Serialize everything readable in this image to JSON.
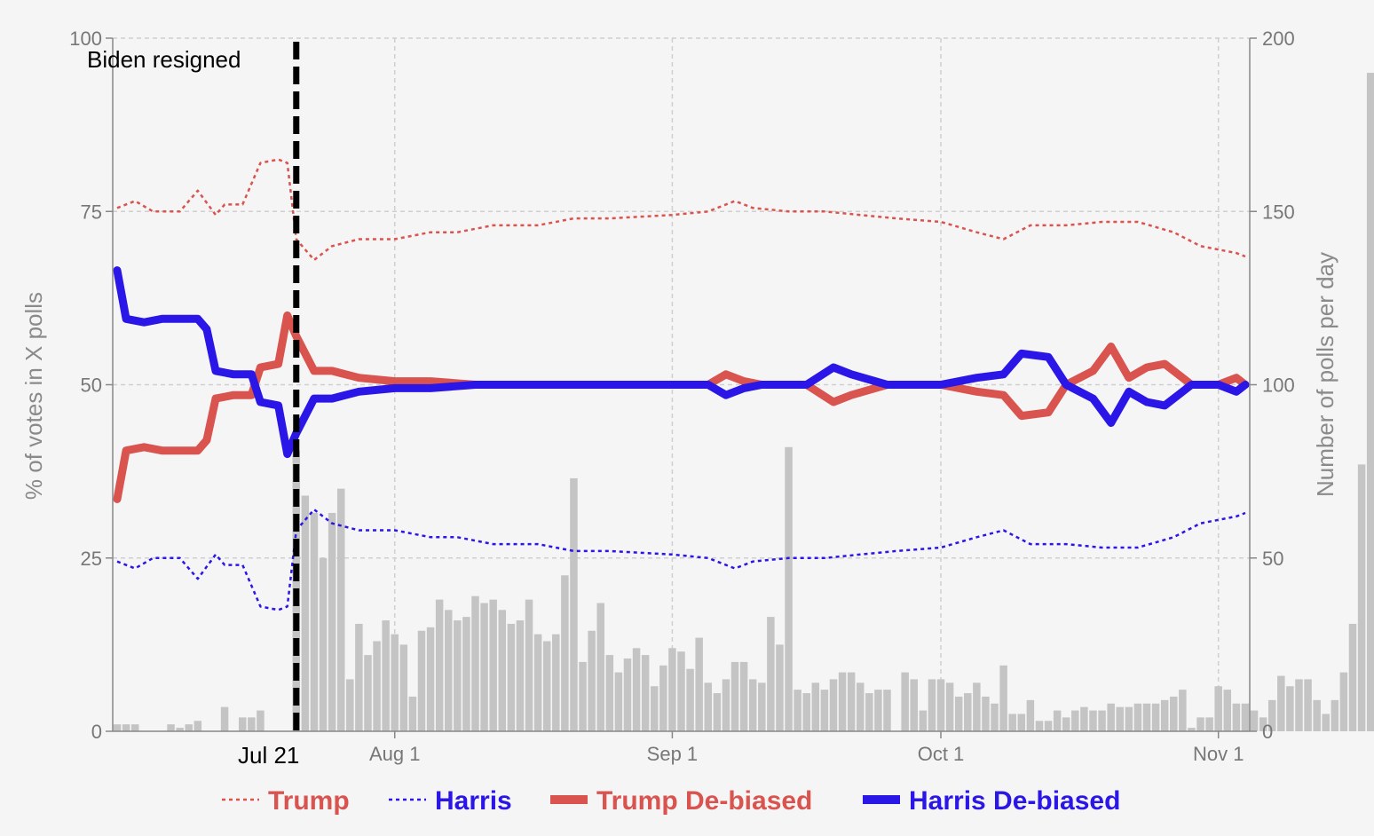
{
  "chart_data": {
    "type": "line",
    "title": "",
    "ylabel": "% of votes in X polls",
    "y2label": "Number of polls per day",
    "ylim": [
      0,
      100
    ],
    "y2lim": [
      0,
      200
    ],
    "yticks": [
      0,
      25,
      50,
      75,
      100
    ],
    "y2ticks": [
      0,
      50,
      100,
      150,
      200
    ],
    "xrange": [
      "2024-07-01",
      "2024-11-04"
    ],
    "xticks": [
      {
        "date": "2024-08-01",
        "label": "Aug 1"
      },
      {
        "date": "2024-09-01",
        "label": "Sep 1"
      },
      {
        "date": "2024-10-01",
        "label": "Oct 1"
      },
      {
        "date": "2024-11-01",
        "label": "Nov 1"
      }
    ],
    "grid": true,
    "legend_position": "bottom",
    "annotation": {
      "date": "2024-07-21",
      "label": "Biden resigned",
      "date_label": "Jul 21"
    },
    "bars": {
      "name": "Number of polls per day",
      "color": "#c4c4c4",
      "values": [
        2,
        2,
        2,
        0,
        0,
        0,
        2,
        1,
        2,
        3,
        0,
        0,
        7,
        0,
        4,
        4,
        6,
        0,
        0,
        0,
        81,
        68,
        63,
        50,
        63,
        70,
        15,
        31,
        22,
        26,
        32,
        28,
        25,
        10,
        29,
        30,
        38,
        35,
        32,
        33,
        39,
        37,
        38,
        35,
        31,
        32,
        38,
        28,
        26,
        28,
        45,
        73,
        20,
        29,
        37,
        22,
        17,
        21,
        24,
        22,
        13,
        19,
        24,
        23,
        18,
        27,
        14,
        11,
        15,
        20,
        20,
        15,
        14,
        33,
        25,
        82,
        12,
        11,
        14,
        12,
        15,
        17,
        17,
        14,
        11,
        12,
        12,
        0,
        17,
        15,
        6,
        15,
        15,
        14,
        10,
        11,
        14,
        10,
        8,
        19,
        5,
        5,
        9,
        3,
        3,
        6,
        4,
        6,
        7,
        6,
        6,
        8,
        7,
        7,
        8,
        8,
        8,
        9,
        10,
        12,
        1,
        4,
        4,
        13,
        12,
        8,
        8,
        6,
        4,
        9,
        16,
        13,
        15,
        15,
        9,
        5,
        9,
        17,
        31,
        77,
        190
      ]
    },
    "series": [
      {
        "name": "Trump",
        "style": "dotted",
        "color": "#d9534f",
        "points": [
          [
            "2024-07-01",
            75.5
          ],
          [
            "2024-07-03",
            76.5
          ],
          [
            "2024-07-05",
            75
          ],
          [
            "2024-07-08",
            75
          ],
          [
            "2024-07-10",
            78
          ],
          [
            "2024-07-12",
            74.5
          ],
          [
            "2024-07-13",
            76
          ],
          [
            "2024-07-15",
            76
          ],
          [
            "2024-07-17",
            82
          ],
          [
            "2024-07-19",
            82.5
          ],
          [
            "2024-07-20",
            82
          ],
          [
            "2024-07-21",
            71
          ],
          [
            "2024-07-23",
            68
          ],
          [
            "2024-07-25",
            70
          ],
          [
            "2024-07-28",
            71
          ],
          [
            "2024-08-01",
            71
          ],
          [
            "2024-08-05",
            72
          ],
          [
            "2024-08-08",
            72
          ],
          [
            "2024-08-12",
            73
          ],
          [
            "2024-08-17",
            73
          ],
          [
            "2024-08-21",
            74
          ],
          [
            "2024-08-25",
            74
          ],
          [
            "2024-09-01",
            74.5
          ],
          [
            "2024-09-05",
            75
          ],
          [
            "2024-09-08",
            76.5
          ],
          [
            "2024-09-10",
            75.5
          ],
          [
            "2024-09-14",
            75
          ],
          [
            "2024-09-18",
            75
          ],
          [
            "2024-09-22",
            74.5
          ],
          [
            "2024-09-26",
            74
          ],
          [
            "2024-10-01",
            73.5
          ],
          [
            "2024-10-05",
            72
          ],
          [
            "2024-10-08",
            71
          ],
          [
            "2024-10-11",
            73
          ],
          [
            "2024-10-15",
            73
          ],
          [
            "2024-10-19",
            73.5
          ],
          [
            "2024-10-23",
            73.5
          ],
          [
            "2024-10-27",
            72
          ],
          [
            "2024-10-30",
            70
          ],
          [
            "2024-11-01",
            69.5
          ],
          [
            "2024-11-03",
            69
          ],
          [
            "2024-11-04",
            68.5
          ]
        ]
      },
      {
        "name": "Harris",
        "style": "dotted",
        "color": "#2a16e6",
        "points": [
          [
            "2024-07-01",
            24.5
          ],
          [
            "2024-07-03",
            23.5
          ],
          [
            "2024-07-05",
            25
          ],
          [
            "2024-07-08",
            25
          ],
          [
            "2024-07-10",
            22
          ],
          [
            "2024-07-12",
            25.5
          ],
          [
            "2024-07-13",
            24
          ],
          [
            "2024-07-15",
            24
          ],
          [
            "2024-07-17",
            18
          ],
          [
            "2024-07-19",
            17.5
          ],
          [
            "2024-07-20",
            18
          ],
          [
            "2024-07-21",
            29
          ],
          [
            "2024-07-23",
            32
          ],
          [
            "2024-07-25",
            30
          ],
          [
            "2024-07-28",
            29
          ],
          [
            "2024-08-01",
            29
          ],
          [
            "2024-08-05",
            28
          ],
          [
            "2024-08-08",
            28
          ],
          [
            "2024-08-12",
            27
          ],
          [
            "2024-08-17",
            27
          ],
          [
            "2024-08-21",
            26
          ],
          [
            "2024-08-25",
            26
          ],
          [
            "2024-09-01",
            25.5
          ],
          [
            "2024-09-05",
            25
          ],
          [
            "2024-09-08",
            23.5
          ],
          [
            "2024-09-10",
            24.5
          ],
          [
            "2024-09-14",
            25
          ],
          [
            "2024-09-18",
            25
          ],
          [
            "2024-09-22",
            25.5
          ],
          [
            "2024-09-26",
            26
          ],
          [
            "2024-10-01",
            26.5
          ],
          [
            "2024-10-05",
            28
          ],
          [
            "2024-10-08",
            29
          ],
          [
            "2024-10-11",
            27
          ],
          [
            "2024-10-15",
            27
          ],
          [
            "2024-10-19",
            26.5
          ],
          [
            "2024-10-23",
            26.5
          ],
          [
            "2024-10-27",
            28
          ],
          [
            "2024-10-30",
            30
          ],
          [
            "2024-11-01",
            30.5
          ],
          [
            "2024-11-03",
            31
          ],
          [
            "2024-11-04",
            31.5
          ]
        ]
      },
      {
        "name": "Trump De-biased",
        "style": "solid",
        "color": "#d9534f",
        "points": [
          [
            "2024-07-01",
            33.5
          ],
          [
            "2024-07-02",
            40.5
          ],
          [
            "2024-07-04",
            41
          ],
          [
            "2024-07-06",
            40.5
          ],
          [
            "2024-07-08",
            40.5
          ],
          [
            "2024-07-10",
            40.5
          ],
          [
            "2024-07-11",
            42
          ],
          [
            "2024-07-12",
            48
          ],
          [
            "2024-07-14",
            48.5
          ],
          [
            "2024-07-16",
            48.5
          ],
          [
            "2024-07-17",
            52.5
          ],
          [
            "2024-07-19",
            53
          ],
          [
            "2024-07-20",
            60
          ],
          [
            "2024-07-21",
            57
          ],
          [
            "2024-07-23",
            52
          ],
          [
            "2024-07-25",
            52
          ],
          [
            "2024-07-28",
            51
          ],
          [
            "2024-08-01",
            50.5
          ],
          [
            "2024-08-05",
            50.5
          ],
          [
            "2024-08-10",
            50
          ],
          [
            "2024-08-15",
            50
          ],
          [
            "2024-08-20",
            50
          ],
          [
            "2024-08-25",
            50
          ],
          [
            "2024-09-01",
            50
          ],
          [
            "2024-09-05",
            50
          ],
          [
            "2024-09-07",
            51.5
          ],
          [
            "2024-09-09",
            50.5
          ],
          [
            "2024-09-11",
            50
          ],
          [
            "2024-09-16",
            50
          ],
          [
            "2024-09-19",
            47.5
          ],
          [
            "2024-09-21",
            48.5
          ],
          [
            "2024-09-25",
            50
          ],
          [
            "2024-10-01",
            50
          ],
          [
            "2024-10-05",
            49
          ],
          [
            "2024-10-08",
            48.5
          ],
          [
            "2024-10-10",
            45.5
          ],
          [
            "2024-10-13",
            46
          ],
          [
            "2024-10-15",
            50
          ],
          [
            "2024-10-18",
            52
          ],
          [
            "2024-10-20",
            55.5
          ],
          [
            "2024-10-22",
            51
          ],
          [
            "2024-10-24",
            52.5
          ],
          [
            "2024-10-26",
            53
          ],
          [
            "2024-10-29",
            50
          ],
          [
            "2024-11-01",
            50
          ],
          [
            "2024-11-03",
            51
          ],
          [
            "2024-11-04",
            50
          ]
        ]
      },
      {
        "name": "Harris De-biased",
        "style": "solid",
        "color": "#2a16e6",
        "points": [
          [
            "2024-07-01",
            66.5
          ],
          [
            "2024-07-02",
            59.5
          ],
          [
            "2024-07-04",
            59
          ],
          [
            "2024-07-06",
            59.5
          ],
          [
            "2024-07-08",
            59.5
          ],
          [
            "2024-07-10",
            59.5
          ],
          [
            "2024-07-11",
            58
          ],
          [
            "2024-07-12",
            52
          ],
          [
            "2024-07-14",
            51.5
          ],
          [
            "2024-07-16",
            51.5
          ],
          [
            "2024-07-17",
            47.5
          ],
          [
            "2024-07-19",
            47
          ],
          [
            "2024-07-20",
            40
          ],
          [
            "2024-07-21",
            43
          ],
          [
            "2024-07-23",
            48
          ],
          [
            "2024-07-25",
            48
          ],
          [
            "2024-07-28",
            49
          ],
          [
            "2024-08-01",
            49.5
          ],
          [
            "2024-08-05",
            49.5
          ],
          [
            "2024-08-10",
            50
          ],
          [
            "2024-08-15",
            50
          ],
          [
            "2024-08-20",
            50
          ],
          [
            "2024-08-25",
            50
          ],
          [
            "2024-09-01",
            50
          ],
          [
            "2024-09-05",
            50
          ],
          [
            "2024-09-07",
            48.5
          ],
          [
            "2024-09-09",
            49.5
          ],
          [
            "2024-09-11",
            50
          ],
          [
            "2024-09-16",
            50
          ],
          [
            "2024-09-19",
            52.5
          ],
          [
            "2024-09-21",
            51.5
          ],
          [
            "2024-09-25",
            50
          ],
          [
            "2024-10-01",
            50
          ],
          [
            "2024-10-05",
            51
          ],
          [
            "2024-10-08",
            51.5
          ],
          [
            "2024-10-10",
            54.5
          ],
          [
            "2024-10-13",
            54
          ],
          [
            "2024-10-15",
            50
          ],
          [
            "2024-10-18",
            48
          ],
          [
            "2024-10-20",
            44.5
          ],
          [
            "2024-10-22",
            49
          ],
          [
            "2024-10-24",
            47.5
          ],
          [
            "2024-10-26",
            47
          ],
          [
            "2024-10-29",
            50
          ],
          [
            "2024-11-01",
            50
          ],
          [
            "2024-11-03",
            49
          ],
          [
            "2024-11-04",
            50
          ]
        ]
      }
    ]
  }
}
